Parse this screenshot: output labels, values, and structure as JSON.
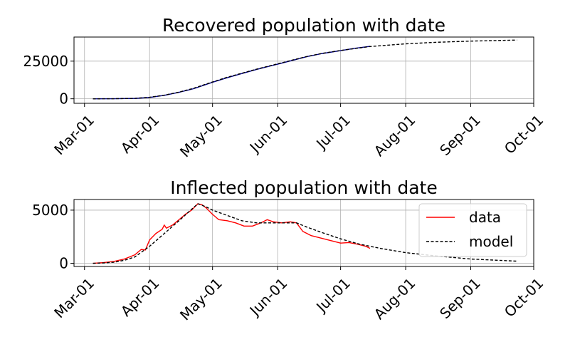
{
  "chart_data": [
    {
      "type": "line",
      "title": "Recovered population with date",
      "xlabel": "",
      "ylabel": "",
      "x_ticks": [
        "Mar-01",
        "Apr-01",
        "May-01",
        "Jun-01",
        "Jul-01",
        "Aug-01",
        "Sep-01",
        "Oct-01"
      ],
      "y_ticks": [
        "0",
        "25000"
      ],
      "xlim": [
        "2020-02-25",
        "2020-10-01"
      ],
      "ylim": [
        -3000,
        41000
      ],
      "grid": true,
      "legend": null,
      "series": [
        {
          "color": "#00008b",
          "style": "solid",
          "points": [
            [
              "2020-03-05",
              0
            ],
            [
              "2020-03-15",
              50
            ],
            [
              "2020-03-25",
              250
            ],
            [
              "2020-04-01",
              900
            ],
            [
              "2020-04-08",
              2300
            ],
            [
              "2020-04-15",
              4300
            ],
            [
              "2020-04-22",
              6700
            ],
            [
              "2020-05-01",
              11000
            ],
            [
              "2020-05-08",
              14000
            ],
            [
              "2020-05-15",
              16800
            ],
            [
              "2020-05-22",
              19500
            ],
            [
              "2020-06-01",
              23000
            ],
            [
              "2020-06-08",
              25500
            ],
            [
              "2020-06-15",
              28000
            ],
            [
              "2020-06-22",
              30000
            ],
            [
              "2020-07-01",
              32000
            ],
            [
              "2020-07-08",
              33600
            ],
            [
              "2020-07-15",
              34800
            ]
          ]
        },
        {
          "color": "#000000",
          "style": "dashed",
          "points": [
            [
              "2020-03-05",
              0
            ],
            [
              "2020-03-15",
              60
            ],
            [
              "2020-03-25",
              300
            ],
            [
              "2020-04-01",
              1000
            ],
            [
              "2020-04-08",
              2400
            ],
            [
              "2020-04-15",
              4400
            ],
            [
              "2020-04-22",
              7000
            ],
            [
              "2020-05-01",
              11200
            ],
            [
              "2020-05-08",
              14300
            ],
            [
              "2020-05-15",
              17000
            ],
            [
              "2020-05-22",
              19700
            ],
            [
              "2020-06-01",
              23200
            ],
            [
              "2020-06-08",
              25700
            ],
            [
              "2020-06-15",
              28100
            ],
            [
              "2020-06-22",
              30100
            ],
            [
              "2020-07-01",
              32100
            ],
            [
              "2020-07-15",
              34700
            ],
            [
              "2020-08-01",
              36500
            ],
            [
              "2020-08-15",
              37500
            ],
            [
              "2020-09-01",
              38300
            ],
            [
              "2020-09-23",
              39000
            ]
          ]
        }
      ]
    },
    {
      "type": "line",
      "title": "Inflected population with date",
      "xlabel": "",
      "ylabel": "",
      "x_ticks": [
        "Mar-01",
        "Apr-01",
        "May-01",
        "Jun-01",
        "Jul-01",
        "Aug-01",
        "Sep-01",
        "Oct-01"
      ],
      "y_ticks": [
        "0",
        "5000"
      ],
      "xlim": [
        "2020-02-25",
        "2020-10-01"
      ],
      "ylim": [
        -300,
        6000
      ],
      "grid": true,
      "legend": "top-right",
      "series": [
        {
          "name": "data",
          "color": "#ff0000",
          "style": "solid",
          "points": [
            [
              "2020-03-05",
              0
            ],
            [
              "2020-03-10",
              60
            ],
            [
              "2020-03-15",
              170
            ],
            [
              "2020-03-20",
              400
            ],
            [
              "2020-03-25",
              800
            ],
            [
              "2020-03-28",
              1300
            ],
            [
              "2020-03-30",
              1250
            ],
            [
              "2020-04-01",
              2200
            ],
            [
              "2020-04-04",
              2800
            ],
            [
              "2020-04-07",
              3200
            ],
            [
              "2020-04-08",
              3600
            ],
            [
              "2020-04-09",
              3300
            ],
            [
              "2020-04-12",
              3600
            ],
            [
              "2020-04-15",
              4100
            ],
            [
              "2020-04-18",
              4600
            ],
            [
              "2020-04-21",
              5000
            ],
            [
              "2020-04-24",
              5600
            ],
            [
              "2020-04-26",
              5500
            ],
            [
              "2020-04-28",
              5200
            ],
            [
              "2020-05-01",
              4600
            ],
            [
              "2020-05-04",
              4100
            ],
            [
              "2020-05-08",
              4000
            ],
            [
              "2020-05-12",
              3800
            ],
            [
              "2020-05-16",
              3500
            ],
            [
              "2020-05-20",
              3500
            ],
            [
              "2020-05-24",
              3800
            ],
            [
              "2020-05-27",
              4100
            ],
            [
              "2020-05-30",
              3900
            ],
            [
              "2020-06-03",
              3800
            ],
            [
              "2020-06-07",
              3900
            ],
            [
              "2020-06-10",
              3800
            ],
            [
              "2020-06-13",
              3000
            ],
            [
              "2020-06-17",
              2600
            ],
            [
              "2020-06-21",
              2400
            ],
            [
              "2020-06-25",
              2200
            ],
            [
              "2020-06-29",
              2000
            ],
            [
              "2020-07-01",
              1900
            ],
            [
              "2020-07-05",
              1950
            ],
            [
              "2020-07-09",
              1800
            ],
            [
              "2020-07-13",
              1600
            ],
            [
              "2020-07-15",
              1400
            ]
          ]
        },
        {
          "name": "model",
          "color": "#000000",
          "style": "dashed",
          "points": [
            [
              "2020-03-05",
              0
            ],
            [
              "2020-03-10",
              30
            ],
            [
              "2020-03-15",
              100
            ],
            [
              "2020-03-20",
              280
            ],
            [
              "2020-03-25",
              600
            ],
            [
              "2020-04-01",
              1600
            ],
            [
              "2020-04-08",
              2800
            ],
            [
              "2020-04-15",
              4000
            ],
            [
              "2020-04-20",
              4900
            ],
            [
              "2020-04-24",
              5600
            ],
            [
              "2020-04-28",
              5300
            ],
            [
              "2020-05-01",
              5000
            ],
            [
              "2020-05-08",
              4500
            ],
            [
              "2020-05-15",
              4000
            ],
            [
              "2020-05-22",
              3800
            ],
            [
              "2020-06-01",
              3800
            ],
            [
              "2020-06-10",
              3800
            ],
            [
              "2020-06-15",
              3400
            ],
            [
              "2020-06-22",
              2900
            ],
            [
              "2020-07-01",
              2300
            ],
            [
              "2020-07-10",
              1800
            ],
            [
              "2020-07-20",
              1400
            ],
            [
              "2020-08-01",
              1000
            ],
            [
              "2020-08-15",
              700
            ],
            [
              "2020-09-01",
              400
            ],
            [
              "2020-09-23",
              200
            ]
          ]
        }
      ]
    }
  ]
}
